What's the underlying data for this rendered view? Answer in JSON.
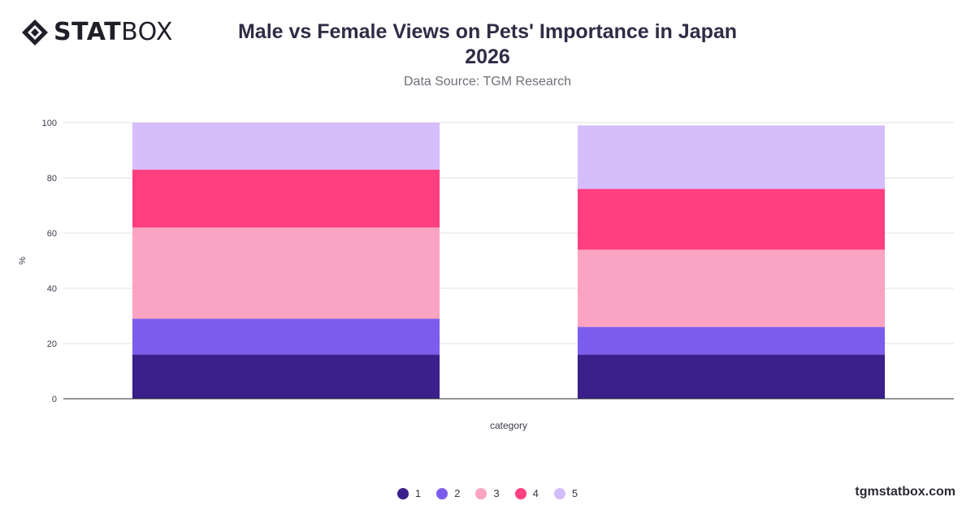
{
  "brand": {
    "name_bold": "STAT",
    "name_regular": "BOX",
    "website": "tgmstatbox.com"
  },
  "header": {
    "title_line1": "Male vs Female Views on Pets' Importance in Japan",
    "title_line2": "2026",
    "subtitle": "Data Source: TGM Research"
  },
  "chart_data": {
    "type": "bar",
    "stacked": true,
    "title": "Male vs Female Views on Pets' Importance in Japan 2026",
    "subtitle": "Data Source: TGM Research",
    "xlabel": "category",
    "ylabel": "%",
    "ylim": [
      0,
      100
    ],
    "yticks": [
      0,
      20,
      40,
      60,
      80,
      100
    ],
    "grid": true,
    "legend_position": "bottom",
    "categories": [
      "",
      ""
    ],
    "series": [
      {
        "name": "1",
        "color": "#3b1f8a",
        "values": [
          16,
          16
        ]
      },
      {
        "name": "2",
        "color": "#7b5ded",
        "values": [
          13,
          10
        ]
      },
      {
        "name": "3",
        "color": "#fba3c2",
        "values": [
          33,
          28
        ]
      },
      {
        "name": "4",
        "color": "#ff3f80",
        "values": [
          21,
          22
        ]
      },
      {
        "name": "5",
        "color": "#d5bdfc",
        "values": [
          17,
          23
        ]
      }
    ]
  }
}
